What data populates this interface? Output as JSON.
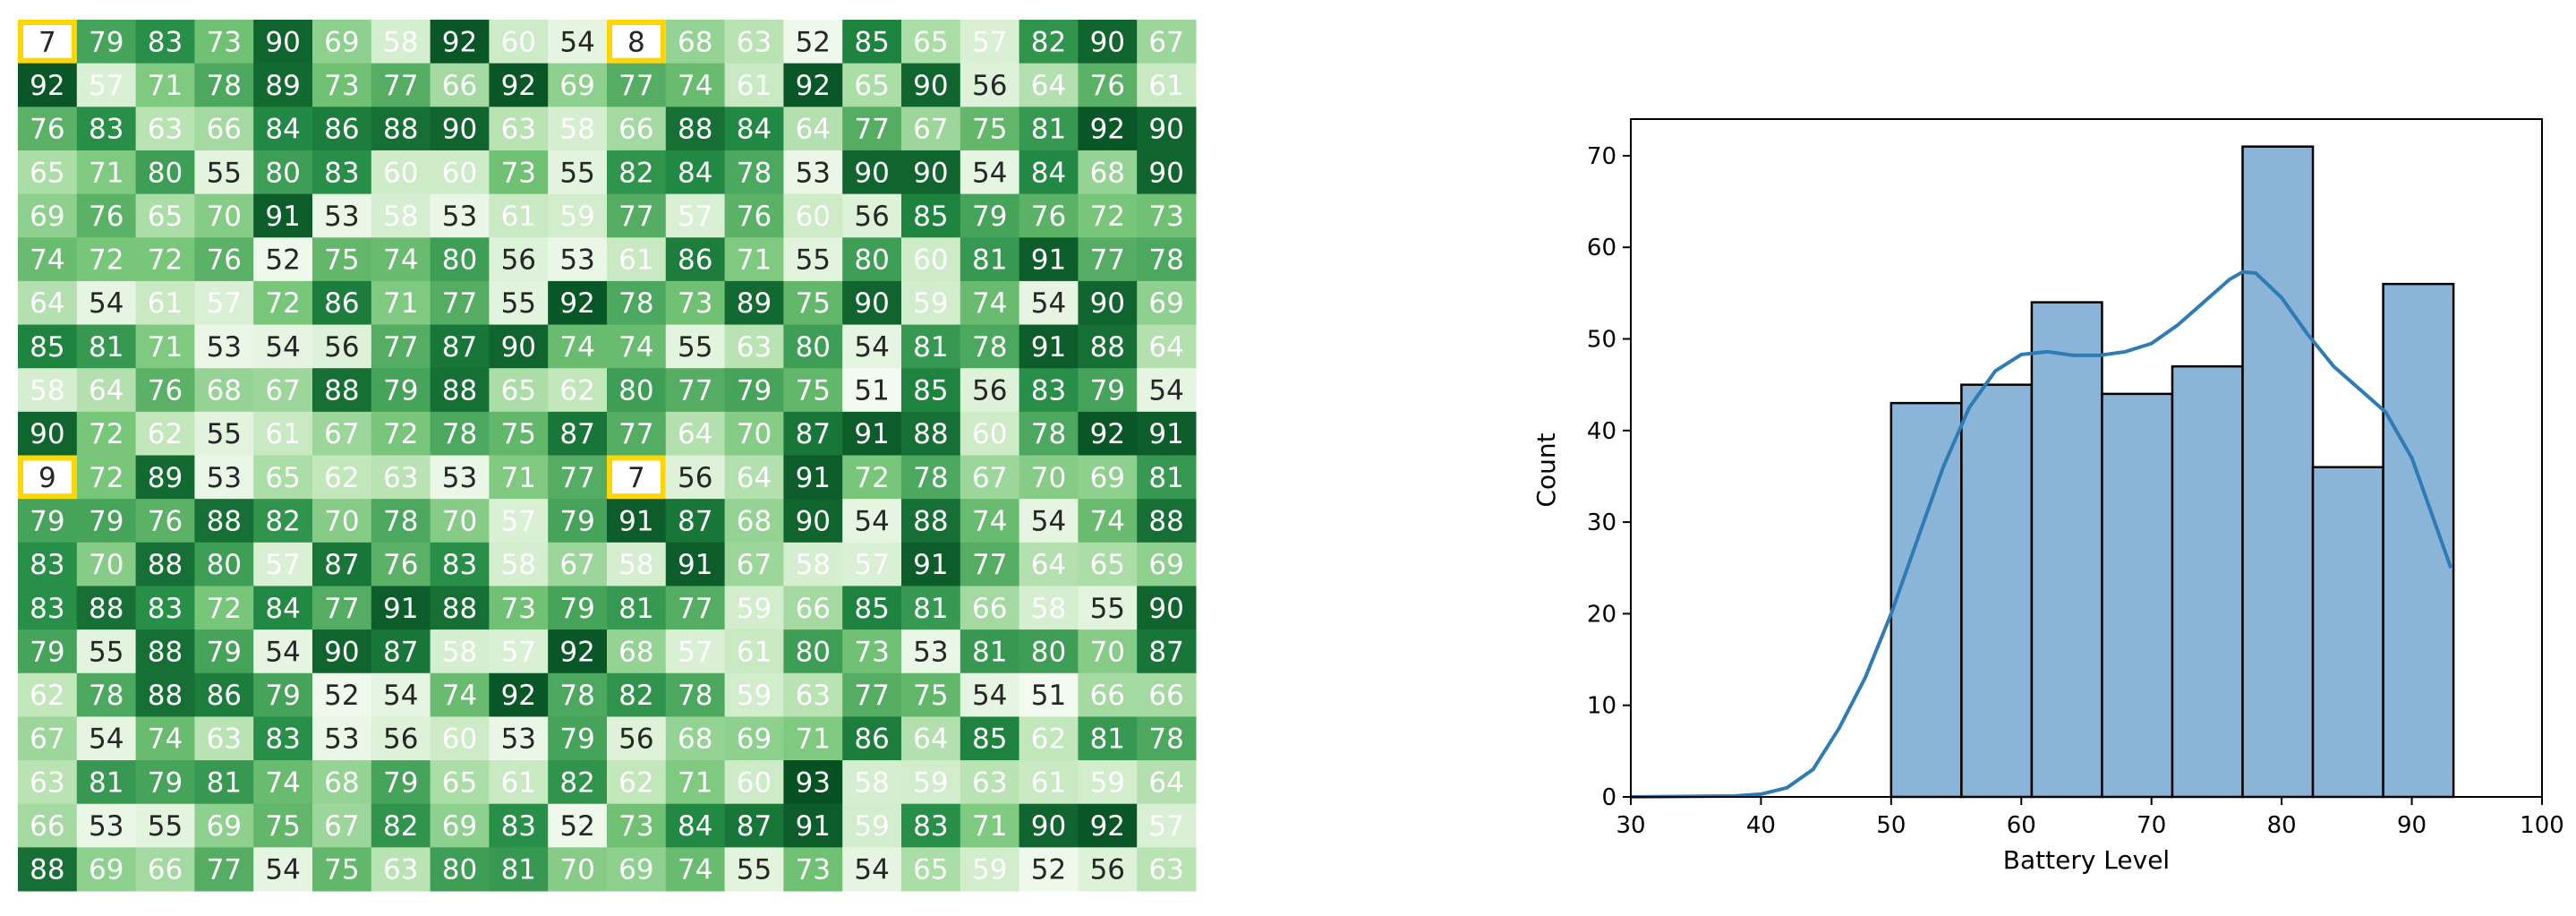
{
  "chart_data": [
    {
      "type": "heatmap",
      "colormap": "Greens",
      "value_range": [
        50,
        95
      ],
      "highlight_color": "#ffd700",
      "highlight_cells": [
        [
          0,
          0
        ],
        [
          0,
          10
        ],
        [
          10,
          0
        ],
        [
          10,
          10
        ]
      ],
      "rows": [
        [
          7,
          79,
          83,
          73,
          90,
          69,
          58,
          92,
          60,
          54,
          8,
          68,
          63,
          52,
          85,
          65,
          57,
          82,
          90,
          67
        ],
        [
          92,
          57,
          71,
          78,
          89,
          73,
          77,
          66,
          92,
          69,
          77,
          74,
          61,
          92,
          65,
          90,
          56,
          64,
          76,
          61
        ],
        [
          76,
          83,
          63,
          66,
          84,
          86,
          88,
          90,
          63,
          58,
          66,
          88,
          84,
          64,
          77,
          67,
          75,
          81,
          92,
          90
        ],
        [
          65,
          71,
          80,
          55,
          80,
          83,
          60,
          60,
          73,
          55,
          82,
          84,
          78,
          53,
          90,
          90,
          54,
          84,
          68,
          90
        ],
        [
          69,
          76,
          65,
          70,
          91,
          53,
          58,
          53,
          61,
          59,
          77,
          57,
          76,
          60,
          56,
          85,
          79,
          76,
          72,
          73
        ],
        [
          74,
          72,
          72,
          76,
          52,
          75,
          74,
          80,
          56,
          53,
          61,
          86,
          71,
          55,
          80,
          60,
          81,
          91,
          77,
          78
        ],
        [
          64,
          54,
          61,
          57,
          72,
          86,
          71,
          77,
          55,
          92,
          78,
          73,
          89,
          75,
          90,
          59,
          74,
          54,
          90,
          69
        ],
        [
          85,
          81,
          71,
          53,
          54,
          56,
          77,
          87,
          90,
          74,
          74,
          55,
          63,
          80,
          54,
          81,
          78,
          91,
          88,
          64
        ],
        [
          58,
          64,
          76,
          68,
          67,
          88,
          79,
          88,
          65,
          62,
          80,
          77,
          79,
          75,
          51,
          85,
          56,
          83,
          79,
          54
        ],
        [
          90,
          72,
          62,
          55,
          61,
          67,
          72,
          78,
          75,
          87,
          77,
          64,
          70,
          87,
          91,
          88,
          60,
          78,
          92,
          91
        ],
        [
          9,
          72,
          89,
          53,
          65,
          62,
          63,
          53,
          71,
          77,
          7,
          56,
          64,
          91,
          72,
          78,
          67,
          70,
          69,
          81
        ],
        [
          79,
          79,
          76,
          88,
          82,
          70,
          78,
          70,
          57,
          79,
          91,
          87,
          68,
          90,
          54,
          88,
          74,
          54,
          74,
          88
        ],
        [
          83,
          70,
          88,
          80,
          57,
          87,
          76,
          83,
          58,
          67,
          58,
          91,
          67,
          58,
          57,
          91,
          77,
          64,
          65,
          69
        ],
        [
          83,
          88,
          83,
          72,
          84,
          77,
          91,
          88,
          73,
          79,
          81,
          77,
          59,
          66,
          85,
          81,
          66,
          58,
          55,
          90
        ],
        [
          79,
          55,
          88,
          79,
          54,
          90,
          87,
          58,
          57,
          92,
          68,
          57,
          61,
          80,
          73,
          53,
          81,
          80,
          70,
          87
        ],
        [
          62,
          78,
          88,
          86,
          79,
          52,
          54,
          74,
          92,
          78,
          82,
          78,
          59,
          63,
          77,
          75,
          54,
          51,
          66,
          66
        ],
        [
          67,
          54,
          74,
          63,
          83,
          53,
          56,
          60,
          53,
          79,
          56,
          68,
          69,
          71,
          86,
          64,
          85,
          62,
          81,
          78
        ],
        [
          63,
          81,
          79,
          81,
          74,
          68,
          79,
          65,
          61,
          82,
          62,
          71,
          60,
          93,
          58,
          59,
          63,
          61,
          59,
          64
        ],
        [
          66,
          53,
          55,
          69,
          75,
          67,
          82,
          69,
          83,
          52,
          73,
          84,
          87,
          91,
          59,
          83,
          71,
          90,
          92,
          57
        ],
        [
          88,
          69,
          66,
          77,
          54,
          75,
          63,
          80,
          81,
          70,
          69,
          74,
          55,
          73,
          54,
          65,
          59,
          52,
          56,
          63
        ]
      ]
    },
    {
      "type": "bar",
      "subtype": "histogram_with_kde",
      "xlabel": "Battery Level",
      "ylabel": "Count",
      "xlim": [
        30,
        100
      ],
      "ylim": [
        0,
        74
      ],
      "x_ticks": [
        30,
        40,
        50,
        60,
        70,
        80,
        90,
        100
      ],
      "y_ticks": [
        0,
        10,
        20,
        30,
        40,
        50,
        60,
        70
      ],
      "bar_color": "#8ab4d8",
      "bar_edge_color": "#000000",
      "kde_color": "#2e7bb5",
      "bins": [
        {
          "x0": 50.0,
          "x1": 55.4,
          "count": 43
        },
        {
          "x0": 55.4,
          "x1": 60.8,
          "count": 45
        },
        {
          "x0": 60.8,
          "x1": 66.2,
          "count": 54
        },
        {
          "x0": 66.2,
          "x1": 71.6,
          "count": 44
        },
        {
          "x0": 71.6,
          "x1": 77.0,
          "count": 47
        },
        {
          "x0": 77.0,
          "x1": 82.4,
          "count": 71
        },
        {
          "x0": 82.4,
          "x1": 87.8,
          "count": 36
        },
        {
          "x0": 87.8,
          "x1": 93.2,
          "count": 56
        }
      ],
      "kde": [
        [
          30,
          0
        ],
        [
          38,
          0.1
        ],
        [
          40,
          0.3
        ],
        [
          42,
          1
        ],
        [
          44,
          3
        ],
        [
          46,
          7.5
        ],
        [
          48,
          13
        ],
        [
          50,
          20
        ],
        [
          52,
          28
        ],
        [
          54,
          36
        ],
        [
          56,
          42.5
        ],
        [
          58,
          46.5
        ],
        [
          60,
          48.3
        ],
        [
          62,
          48.6
        ],
        [
          64,
          48.2
        ],
        [
          66,
          48.2
        ],
        [
          68,
          48.6
        ],
        [
          70,
          49.5
        ],
        [
          72,
          51.5
        ],
        [
          74,
          54
        ],
        [
          76,
          56.5
        ],
        [
          77,
          57.3
        ],
        [
          78,
          57.2
        ],
        [
          80,
          54.5
        ],
        [
          82,
          50.5
        ],
        [
          84,
          47
        ],
        [
          86,
          44.5
        ],
        [
          88,
          42
        ],
        [
          90,
          37
        ],
        [
          92,
          29
        ],
        [
          93,
          25
        ]
      ]
    }
  ]
}
